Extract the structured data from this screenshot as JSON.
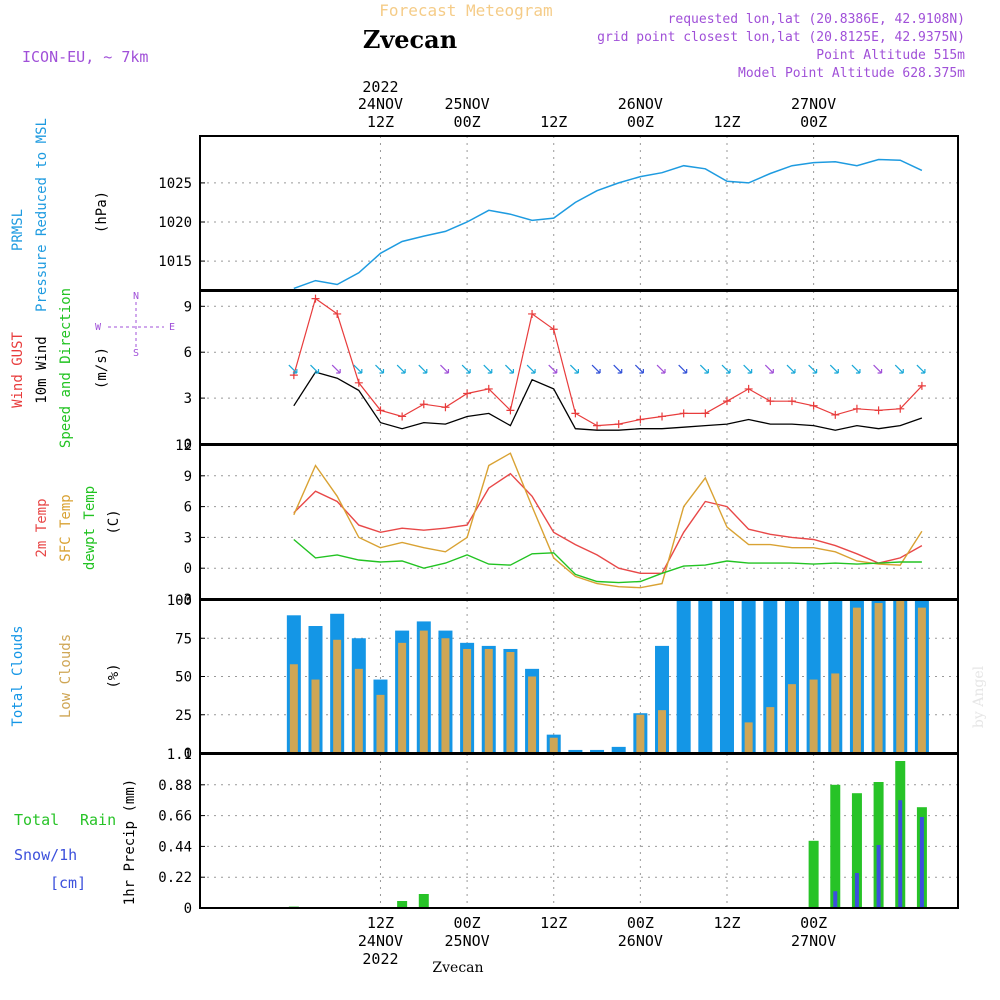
{
  "header": {
    "title": "Forecast Meteogram",
    "location": "Zvecan",
    "model": "ICON-EU, ~ 7km",
    "requested": "requested lon,lat (20.8386E, 42.9108N)",
    "gridpoint": "grid point closest lon,lat (20.8125E, 42.9375N)",
    "point_alt": "Point Altitude 515m",
    "model_alt": "Model Point Altitude 628.375m",
    "footer_location": "Zvecan",
    "credit": "by Angel"
  },
  "top_axis": [
    {
      "hour": "12Z",
      "day": "24NOV",
      "year": "2022"
    },
    {
      "hour": "00Z",
      "day": "25NOV",
      "year": ""
    },
    {
      "hour": "12Z",
      "day": "",
      "year": ""
    },
    {
      "hour": "00Z",
      "day": "26NOV",
      "year": ""
    },
    {
      "hour": "12Z",
      "day": "",
      "year": ""
    },
    {
      "hour": "00Z",
      "day": "27NOV",
      "year": ""
    }
  ],
  "bottom_axis": [
    {
      "hour": "12Z",
      "day": "24NOV",
      "year": "2022"
    },
    {
      "hour": "00Z",
      "day": "25NOV",
      "year": ""
    },
    {
      "hour": "12Z",
      "day": "",
      "year": ""
    },
    {
      "hour": "00Z",
      "day": "26NOV",
      "year": ""
    },
    {
      "hour": "12Z",
      "day": "",
      "year": ""
    },
    {
      "hour": "00Z",
      "day": "27NOV",
      "year": ""
    }
  ],
  "panels": {
    "pressure": {
      "label1": "PRMSL",
      "label2": "Pressure Reduced to MSL",
      "unit": "(hPa)",
      "ticks": [
        "1015",
        "1020",
        "1025"
      ]
    },
    "wind": {
      "label1": "Wind GUST",
      "label2": "10m Wind",
      "label3": "Speed and Direction",
      "unit": "(m/s)",
      "ticks": [
        "0",
        "3",
        "6",
        "9"
      ],
      "compass_n": "N",
      "compass_s": "S",
      "compass_w": "W",
      "compass_e": "E"
    },
    "temp": {
      "label1": "2m Temp",
      "label2": "SFC Temp",
      "label3": "dewpt Temp",
      "unit": "(C)",
      "ticks": [
        "-3",
        "0",
        "3",
        "6",
        "9",
        "12"
      ]
    },
    "clouds": {
      "label1": "Total Clouds",
      "label2": "Low Clouds",
      "unit": "(%)",
      "ticks": [
        "0",
        "25",
        "50",
        "75",
        "100"
      ]
    },
    "precip": {
      "label1": "Total",
      "label1b": "Rain",
      "label2": "Snow/1h",
      "label3": "[cm]",
      "unit": "1hr Precip (mm)",
      "ticks": [
        "0",
        "0.22",
        "0.44",
        "0.66",
        "0.88",
        "1.1"
      ]
    }
  },
  "colors": {
    "pressure": "#1e9be0",
    "gust": "#e83c3c",
    "wind": "#000000",
    "temp2m": "#e84848",
    "sfc": "#d9a233",
    "dewpt": "#22c322",
    "total_cloud": "#1496e6",
    "low_cloud": "#cfa655",
    "rain": "#27c327",
    "snow": "#3c50dc",
    "purple": "#a050d8",
    "title_orange": "#f5cc88"
  },
  "chart_data": [
    {
      "type": "line",
      "title": "PRMSL Pressure Reduced to MSL",
      "ylabel": "(hPa)",
      "ylim": [
        1011.3,
        1031
      ],
      "x_hours": [
        0,
        3,
        6,
        9,
        12,
        15,
        18,
        21,
        24,
        27,
        30,
        33,
        36,
        39,
        42,
        45,
        48,
        51,
        54,
        57,
        60,
        63,
        66,
        69,
        72,
        75,
        78,
        81,
        84,
        87
      ],
      "series": [
        {
          "name": "PRMSL",
          "values": [
            1011.5,
            1012.5,
            1012.0,
            1013.5,
            1016.0,
            1017.5,
            1018.2,
            1018.8,
            1020.0,
            1021.5,
            1021.0,
            1020.2,
            1020.5,
            1022.5,
            1024.0,
            1025.0,
            1025.8,
            1026.3,
            1027.2,
            1026.8,
            1025.2,
            1025.0,
            1026.2,
            1027.2,
            1027.6,
            1027.7,
            1027.2,
            1028.0,
            1027.9,
            1026.6
          ]
        }
      ]
    },
    {
      "type": "line",
      "title": "Wind GUST / 10m Wind",
      "ylabel": "(m/s)",
      "ylim": [
        0,
        10
      ],
      "x_hours": [
        0,
        3,
        6,
        9,
        12,
        15,
        18,
        21,
        24,
        27,
        30,
        33,
        36,
        39,
        42,
        45,
        48,
        51,
        54,
        57,
        60,
        63,
        66,
        69,
        72,
        75,
        78,
        81,
        84,
        87
      ],
      "series": [
        {
          "name": "Wind GUST",
          "values": [
            4.5,
            9.5,
            8.5,
            4.0,
            2.2,
            1.8,
            2.6,
            2.4,
            3.3,
            3.6,
            2.2,
            8.5,
            7.5,
            2.0,
            1.2,
            1.3,
            1.6,
            1.8,
            2.0,
            2.0,
            2.8,
            3.6,
            2.8,
            2.8,
            2.5,
            1.9,
            2.3,
            2.2,
            2.3,
            3.8
          ]
        },
        {
          "name": "10m Wind",
          "values": [
            2.5,
            4.7,
            4.3,
            3.5,
            1.4,
            1.0,
            1.4,
            1.3,
            1.8,
            2.0,
            1.2,
            4.2,
            3.6,
            1.0,
            0.9,
            0.9,
            1.0,
            1.0,
            1.1,
            1.2,
            1.3,
            1.6,
            1.3,
            1.3,
            1.2,
            0.9,
            1.2,
            1.0,
            1.2,
            1.7
          ]
        }
      ]
    },
    {
      "type": "line",
      "title": "2m Temp / SFC Temp / dewpt Temp",
      "ylabel": "(C)",
      "ylim": [
        -3,
        12
      ],
      "x_hours": [
        0,
        3,
        6,
        9,
        12,
        15,
        18,
        21,
        24,
        27,
        30,
        33,
        36,
        39,
        42,
        45,
        48,
        51,
        54,
        57,
        60,
        63,
        66,
        69,
        72,
        75,
        78,
        81,
        84,
        87
      ],
      "series": [
        {
          "name": "2m Temp",
          "values": [
            5.4,
            7.5,
            6.5,
            4.2,
            3.5,
            3.9,
            3.7,
            3.9,
            4.2,
            7.8,
            9.2,
            7.0,
            3.5,
            2.3,
            1.3,
            0.0,
            -0.5,
            -0.5,
            3.5,
            6.5,
            6.0,
            3.8,
            3.3,
            3.0,
            2.8,
            2.2,
            1.4,
            0.5,
            1.0,
            2.2
          ]
        },
        {
          "name": "SFC Temp",
          "values": [
            5.2,
            10.0,
            7.0,
            3.0,
            2.0,
            2.5,
            2.0,
            1.6,
            3.0,
            10.0,
            11.2,
            6.0,
            1.0,
            -0.8,
            -1.5,
            -1.8,
            -1.9,
            -1.5,
            6.0,
            8.8,
            4.0,
            2.3,
            2.3,
            2.0,
            2.0,
            1.6,
            0.7,
            0.4,
            0.3,
            3.6
          ]
        },
        {
          "name": "dewpt Temp",
          "values": [
            2.8,
            1.0,
            1.3,
            0.8,
            0.6,
            0.7,
            0.0,
            0.5,
            1.3,
            0.4,
            0.3,
            1.4,
            1.5,
            -0.6,
            -1.3,
            -1.4,
            -1.3,
            -0.5,
            0.2,
            0.3,
            0.7,
            0.5,
            0.5,
            0.5,
            0.4,
            0.5,
            0.4,
            0.5,
            0.6,
            0.6
          ]
        }
      ]
    },
    {
      "type": "bar",
      "title": "Total Clouds / Low Clouds",
      "ylabel": "(%)",
      "ylim": [
        0,
        100
      ],
      "x_hours": [
        0,
        3,
        6,
        9,
        12,
        15,
        18,
        21,
        24,
        27,
        30,
        33,
        36,
        39,
        42,
        45,
        48,
        51,
        54,
        57,
        60,
        63,
        66,
        69,
        72,
        75,
        78,
        81,
        84,
        87
      ],
      "series": [
        {
          "name": "Total Clouds",
          "values": [
            90,
            83,
            91,
            75,
            48,
            80,
            86,
            80,
            72,
            70,
            68,
            55,
            12,
            2,
            2,
            4,
            26,
            70,
            100,
            100,
            100,
            100,
            100,
            100,
            100,
            100,
            100,
            100,
            100,
            100
          ]
        },
        {
          "name": "Low Clouds",
          "values": [
            58,
            48,
            74,
            55,
            38,
            72,
            80,
            75,
            68,
            68,
            66,
            50,
            10,
            0,
            0,
            0,
            25,
            28,
            0,
            0,
            0,
            20,
            30,
            45,
            48,
            52,
            95,
            98,
            100,
            95
          ]
        }
      ]
    },
    {
      "type": "bar",
      "title": "1hr Precip",
      "ylabel": "1hr Precip (mm)",
      "ylim": [
        0,
        1.1
      ],
      "x_hours": [
        0,
        3,
        6,
        9,
        12,
        15,
        18,
        21,
        24,
        27,
        30,
        33,
        36,
        39,
        42,
        45,
        48,
        51,
        54,
        57,
        60,
        63,
        66,
        69,
        72,
        75,
        78,
        81,
        84,
        87
      ],
      "series": [
        {
          "name": "Total Rain",
          "values": [
            0.01,
            0,
            0,
            0,
            0,
            0.05,
            0.1,
            0,
            0,
            0,
            0,
            0,
            0,
            0,
            0,
            0,
            0,
            0,
            0,
            0,
            0,
            0,
            0,
            0,
            0.48,
            0.88,
            0.82,
            0.9,
            1.05,
            0.72
          ]
        },
        {
          "name": "Snow/1h",
          "values": [
            0,
            0,
            0,
            0,
            0,
            0,
            0,
            0,
            0,
            0,
            0,
            0,
            0,
            0,
            0,
            0,
            0,
            0,
            0,
            0,
            0,
            0,
            0,
            0,
            0,
            0.12,
            0.25,
            0.45,
            0.77,
            0.65
          ]
        }
      ]
    }
  ]
}
